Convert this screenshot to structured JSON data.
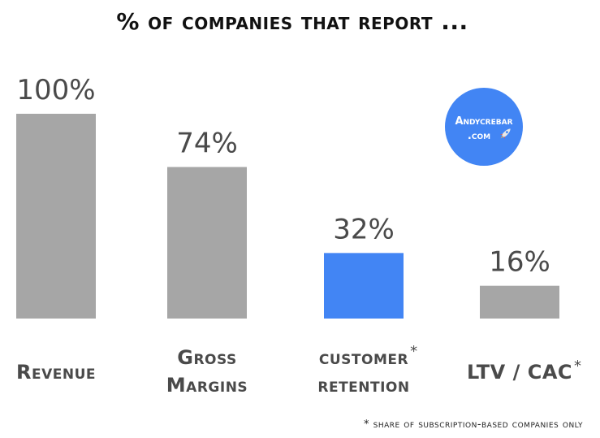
{
  "colors": {
    "bar_default": "#a6a6a6",
    "bar_highlight": "#4285f4",
    "badge": "#4285f4",
    "text": "#4a4a4a",
    "title": "#111111"
  },
  "badge": {
    "line1": "Andycrebar",
    "line2": ".com",
    "icon": "rocket-icon"
  },
  "footnote": "* share of subscription-based companies only",
  "chart_data": {
    "type": "bar",
    "title": "% of companies that report ...",
    "xlabel": "",
    "ylabel": "",
    "ylim": [
      0,
      100
    ],
    "grid": false,
    "categories": [
      {
        "lines": [
          "Revenue"
        ],
        "asterisk": ""
      },
      {
        "lines": [
          "Gross",
          "Margins"
        ],
        "asterisk": ""
      },
      {
        "lines": [
          "customer",
          "retention"
        ],
        "asterisk": "*"
      },
      {
        "lines": [
          "LTV / CAC"
        ],
        "asterisk": "*"
      }
    ],
    "values": [
      100,
      74,
      32,
      16
    ],
    "value_labels": [
      "100%",
      "74%",
      "32%",
      "16%"
    ],
    "highlight_index": 2
  }
}
